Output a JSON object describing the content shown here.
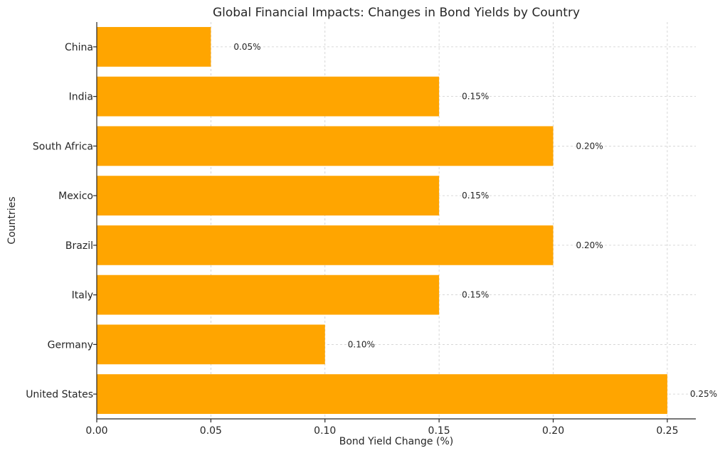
{
  "chart_data": {
    "type": "bar",
    "orientation": "horizontal",
    "title": "Global Financial Impacts: Changes in Bond Yields by Country",
    "xlabel": "Bond Yield Change (%)",
    "ylabel": "Countries",
    "categories": [
      "United States",
      "Germany",
      "Italy",
      "Brazil",
      "Mexico",
      "South Africa",
      "India",
      "China"
    ],
    "values": [
      0.25,
      0.1,
      0.15,
      0.2,
      0.15,
      0.2,
      0.15,
      0.05
    ],
    "value_labels": [
      "0.25%",
      "0.10%",
      "0.15%",
      "0.20%",
      "0.15%",
      "0.20%",
      "0.15%",
      "0.05%"
    ],
    "xlim": [
      0,
      0.2625
    ],
    "xticks": [
      0.0,
      0.05,
      0.1,
      0.15,
      0.2,
      0.25
    ],
    "xtick_labels": [
      "0.00",
      "0.05",
      "0.10",
      "0.15",
      "0.20",
      "0.25"
    ],
    "grid": true,
    "bar_color": "#FFA500"
  }
}
